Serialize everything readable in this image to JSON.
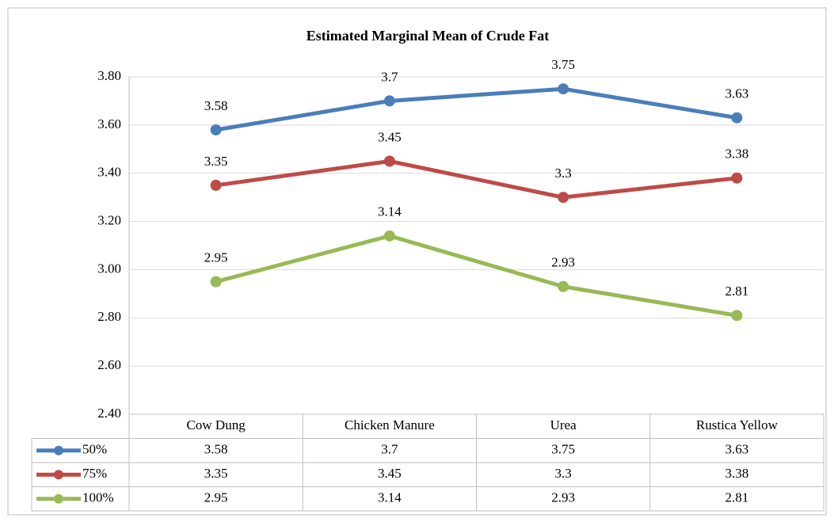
{
  "chart_data": {
    "type": "line",
    "title": "Estimated Marginal Mean of Crude Fat",
    "categories": [
      "Cow Dung",
      "Chicken Manure",
      "Urea",
      "Rustica Yellow"
    ],
    "series": [
      {
        "name": "50%",
        "color": "#4a7ebb",
        "values": [
          3.58,
          3.7,
          3.75,
          3.63
        ]
      },
      {
        "name": "75%",
        "color": "#be4b48",
        "values": [
          3.35,
          3.45,
          3.3,
          3.38
        ]
      },
      {
        "name": "100%",
        "color": "#98b954",
        "values": [
          2.95,
          3.14,
          2.93,
          2.81
        ]
      }
    ],
    "ylim": [
      2.4,
      3.8
    ],
    "yticks": [
      {
        "value": 2.4,
        "label": "2.40"
      },
      {
        "value": 2.6,
        "label": "2.60"
      },
      {
        "value": 2.8,
        "label": "2.80"
      },
      {
        "value": 3.0,
        "label": "3.00"
      },
      {
        "value": 3.2,
        "label": "3.20"
      },
      {
        "value": 3.4,
        "label": "3.40"
      },
      {
        "value": 3.6,
        "label": "3.60"
      },
      {
        "value": 3.8,
        "label": "3.80"
      }
    ],
    "grid": true,
    "data_table": true
  }
}
